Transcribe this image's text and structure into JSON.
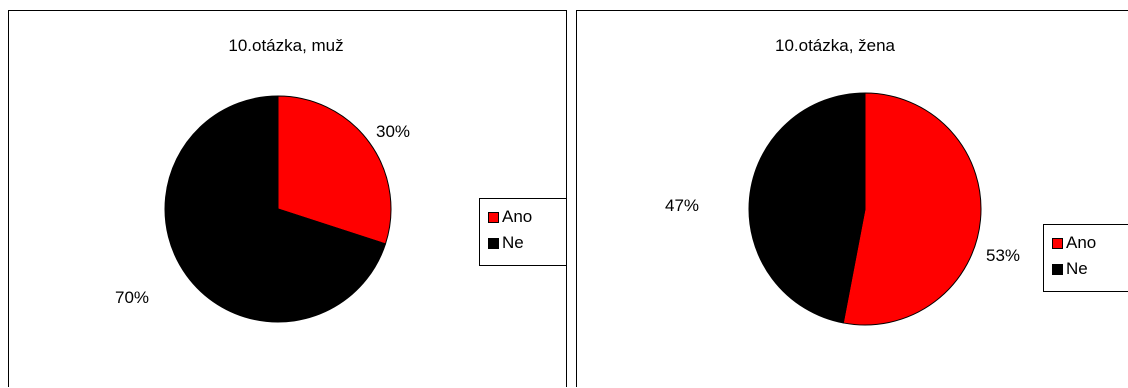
{
  "chart_data": [
    {
      "type": "pie",
      "title": "10.otázka, muž",
      "categories": [
        "Ano",
        "Ne"
      ],
      "values": [
        30,
        70
      ],
      "data_labels": [
        "30%",
        "70%"
      ],
      "colors": [
        "#ff0000",
        "#000000"
      ],
      "legend": {
        "placement": "right",
        "entries": [
          "Ano",
          "Ne"
        ]
      }
    },
    {
      "type": "pie",
      "title": "10.otázka, žena",
      "categories": [
        "Ano",
        "Ne"
      ],
      "values": [
        53,
        47
      ],
      "data_labels": [
        "53%",
        "47%"
      ],
      "colors": [
        "#ff0000",
        "#000000"
      ],
      "legend": {
        "placement": "right",
        "entries": [
          "Ano",
          "Ne"
        ]
      }
    }
  ]
}
